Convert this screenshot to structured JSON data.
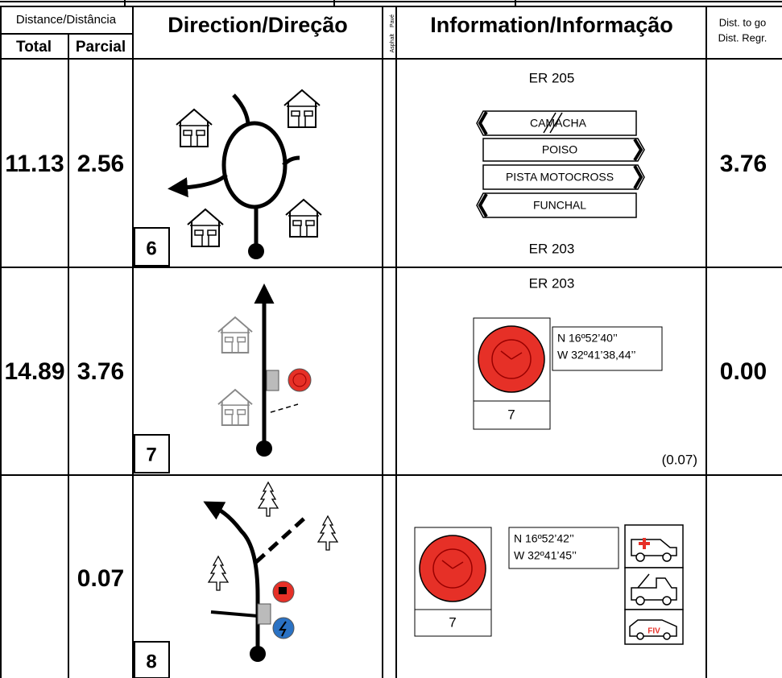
{
  "header": {
    "distance": "Distance/Distância",
    "total": "Total",
    "partial": "Parcial",
    "direction": "Direction/Direção",
    "surface": [
      "Pavé",
      "Asphalt"
    ],
    "information": "Information/Informação",
    "dist_to_go": [
      "Dist. to go",
      "Dist. Regr."
    ]
  },
  "rows": [
    {
      "total": "11.13",
      "partial": "2.56",
      "box": "6",
      "info": {
        "top": "ER 205",
        "signs": [
          "CAMACHA",
          "POISO",
          "PISTA MOTOCROSS",
          "FUNCHAL"
        ],
        "bottom": "ER 203"
      },
      "dist_to_go": "3.76"
    },
    {
      "total": "14.89",
      "partial": "3.76",
      "box": "7",
      "info": {
        "top": "ER 203",
        "coords": [
          "N 16º52’40’’",
          "W 32º41’38,44’’"
        ],
        "checkpoint": "7",
        "note": "(0.07)"
      },
      "dist_to_go": "0.00"
    },
    {
      "partial": "0.07",
      "box": "8",
      "info": {
        "coords": [
          "N 16º52’42’’",
          "W 32º41’45’’"
        ],
        "checkpoint": "7",
        "icon": "FIV"
      }
    }
  ]
}
